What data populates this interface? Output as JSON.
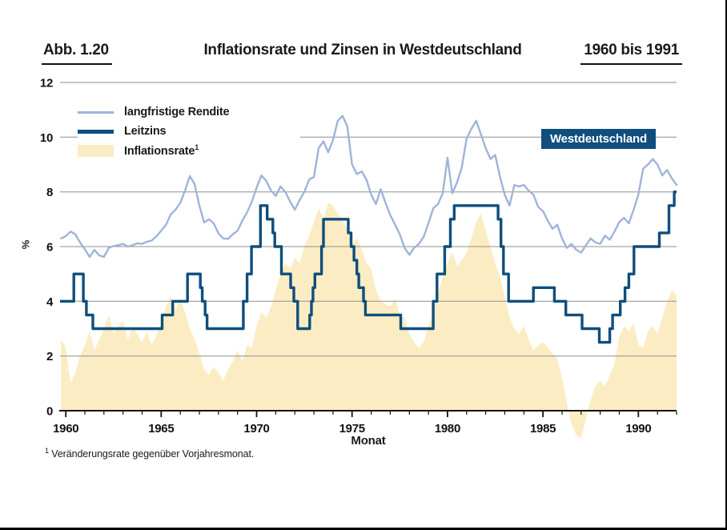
{
  "header": {
    "figure_label": "Abb. 1.20",
    "period": "1960 bis 1991"
  },
  "region_label": "Westdeutschland",
  "footnote": {
    "marker": "1",
    "text": "Veränderungsrate gegenüber Vorjahresmonat."
  },
  "colors": {
    "rendite": "#9fb4d9",
    "leitzins": "#0f4e7d",
    "inflation": "#fbecc3",
    "grid": "#8f8f8f",
    "axis": "#111111",
    "badge_bg": "#0f4e7d",
    "badge_text": "#ffffff"
  },
  "chart_data": {
    "type": "line",
    "title": "Inflationsrate und Zinsen in Westdeutschland",
    "xlabel": "Monat",
    "ylabel": "%",
    "x_range": [
      1959.7,
      1992.0
    ],
    "y_range": [
      0,
      12
    ],
    "x_major_ticks": [
      1960,
      1965,
      1970,
      1975,
      1980,
      1985,
      1990
    ],
    "x_minor_tick_interval": 1,
    "y_ticks": [
      0,
      2,
      4,
      6,
      8,
      10,
      12
    ],
    "grid": "horizontal",
    "legend_position": "top-left-inside",
    "legend": [
      {
        "label": "langfristige Rendite",
        "type": "line"
      },
      {
        "label": "Leitzins",
        "type": "line"
      },
      {
        "label": "Inflationsrate",
        "footnote_marker": "1",
        "type": "area"
      }
    ],
    "series": [
      {
        "id": "rendite",
        "name": "langfristige Rendite",
        "kind": "line",
        "x_start": 1959.75,
        "x_step": 0.25,
        "values": [
          6.3,
          6.38,
          6.55,
          6.45,
          6.15,
          5.9,
          5.62,
          5.88,
          5.68,
          5.62,
          5.95,
          6.02,
          6.05,
          6.1,
          6.0,
          6.05,
          6.12,
          6.1,
          6.18,
          6.22,
          6.38,
          6.58,
          6.8,
          7.18,
          7.35,
          7.6,
          8.05,
          8.58,
          8.28,
          7.5,
          6.88,
          7.0,
          6.85,
          6.48,
          6.3,
          6.28,
          6.45,
          6.58,
          6.95,
          7.25,
          7.65,
          8.15,
          8.6,
          8.4,
          8.05,
          7.85,
          8.2,
          8.0,
          7.65,
          7.35,
          7.7,
          8.0,
          8.45,
          8.55,
          9.6,
          9.85,
          9.45,
          9.9,
          10.6,
          10.78,
          10.4,
          9.0,
          8.65,
          8.75,
          8.45,
          7.9,
          7.55,
          8.1,
          7.6,
          7.15,
          6.8,
          6.45,
          5.95,
          5.7,
          5.95,
          6.1,
          6.35,
          6.85,
          7.4,
          7.55,
          7.95,
          9.25,
          7.95,
          8.35,
          8.9,
          9.95,
          10.3,
          10.6,
          10.1,
          9.6,
          9.2,
          9.35,
          8.55,
          7.9,
          7.5,
          8.25,
          8.2,
          8.25,
          8.05,
          7.9,
          7.45,
          7.3,
          6.95,
          6.65,
          6.8,
          6.3,
          5.95,
          6.1,
          5.88,
          5.78,
          6.05,
          6.3,
          6.15,
          6.1,
          6.4,
          6.25,
          6.55,
          6.9,
          7.05,
          6.85,
          7.35,
          7.9,
          8.85,
          9.0,
          9.2,
          9.0,
          8.6,
          8.8,
          8.5,
          8.25
        ]
      },
      {
        "id": "leitzins",
        "name": "Leitzins",
        "kind": "step",
        "steps": [
          [
            1959.7,
            4
          ],
          [
            1960.42,
            5
          ],
          [
            1960.92,
            4
          ],
          [
            1961.08,
            3.5
          ],
          [
            1961.42,
            3
          ],
          [
            1965.05,
            3.5
          ],
          [
            1965.6,
            4
          ],
          [
            1966.38,
            5
          ],
          [
            1967.05,
            4.5
          ],
          [
            1967.15,
            4
          ],
          [
            1967.3,
            3.5
          ],
          [
            1967.4,
            3
          ],
          [
            1969.3,
            4
          ],
          [
            1969.5,
            5
          ],
          [
            1969.73,
            6
          ],
          [
            1970.2,
            7.5
          ],
          [
            1970.55,
            7
          ],
          [
            1970.85,
            6.5
          ],
          [
            1970.95,
            6
          ],
          [
            1971.3,
            5
          ],
          [
            1971.78,
            4.5
          ],
          [
            1971.95,
            4
          ],
          [
            1972.15,
            3
          ],
          [
            1972.78,
            3.5
          ],
          [
            1972.87,
            4
          ],
          [
            1972.95,
            4.5
          ],
          [
            1973.05,
            5
          ],
          [
            1973.4,
            6
          ],
          [
            1973.5,
            7
          ],
          [
            1974.8,
            6.5
          ],
          [
            1974.95,
            6
          ],
          [
            1975.1,
            5.5
          ],
          [
            1975.25,
            5
          ],
          [
            1975.35,
            4.5
          ],
          [
            1975.6,
            4
          ],
          [
            1975.7,
            3.5
          ],
          [
            1977.55,
            3
          ],
          [
            1979.25,
            4
          ],
          [
            1979.45,
            5
          ],
          [
            1979.85,
            6
          ],
          [
            1980.15,
            7
          ],
          [
            1980.35,
            7.5
          ],
          [
            1982.65,
            7
          ],
          [
            1982.8,
            6
          ],
          [
            1982.93,
            5
          ],
          [
            1983.2,
            4
          ],
          [
            1984.5,
            4.5
          ],
          [
            1985.6,
            4
          ],
          [
            1986.2,
            3.5
          ],
          [
            1987.05,
            3
          ],
          [
            1987.95,
            2.5
          ],
          [
            1988.5,
            3
          ],
          [
            1988.65,
            3.5
          ],
          [
            1989.05,
            4
          ],
          [
            1989.3,
            4.5
          ],
          [
            1989.5,
            5
          ],
          [
            1989.77,
            6
          ],
          [
            1991.1,
            6.5
          ],
          [
            1991.6,
            7.5
          ],
          [
            1991.88,
            8
          ]
        ]
      },
      {
        "id": "inflation",
        "name": "Inflationsrate",
        "kind": "area",
        "x_start": 1959.75,
        "x_step": 0.25,
        "values": [
          2.6,
          2.3,
          1.0,
          1.4,
          2.0,
          2.4,
          2.9,
          2.2,
          2.6,
          3.0,
          3.5,
          2.8,
          3.1,
          3.3,
          2.6,
          3.05,
          2.8,
          2.5,
          2.9,
          2.4,
          2.75,
          3.2,
          3.8,
          4.2,
          3.7,
          4.1,
          3.6,
          3.0,
          2.6,
          2.1,
          1.5,
          1.3,
          1.6,
          1.4,
          1.1,
          1.5,
          1.8,
          2.2,
          1.8,
          2.4,
          2.3,
          3.1,
          3.6,
          3.4,
          3.8,
          4.4,
          5.0,
          5.4,
          5.2,
          5.6,
          5.4,
          6.0,
          6.4,
          6.9,
          7.4,
          7.0,
          7.6,
          7.5,
          7.2,
          7.0,
          6.6,
          6.1,
          6.3,
          5.9,
          5.4,
          5.2,
          4.4,
          4.0,
          3.9,
          3.8,
          4.1,
          3.5,
          3.4,
          2.8,
          2.5,
          2.3,
          2.5,
          3.1,
          3.6,
          4.3,
          4.9,
          5.4,
          5.8,
          5.3,
          5.5,
          5.8,
          6.3,
          6.9,
          7.2,
          6.6,
          6.0,
          5.4,
          4.9,
          4.2,
          3.4,
          3.0,
          2.8,
          3.1,
          2.6,
          2.2,
          2.4,
          2.5,
          2.3,
          2.1,
          1.9,
          1.2,
          0.3,
          -0.5,
          -0.9,
          -1.0,
          -0.3,
          0.4,
          0.9,
          1.1,
          0.9,
          1.3,
          1.7,
          2.7,
          3.1,
          2.9,
          3.2,
          2.4,
          2.3,
          2.9,
          3.1,
          2.8,
          3.4,
          4.0,
          4.4,
          4.2
        ]
      }
    ]
  }
}
